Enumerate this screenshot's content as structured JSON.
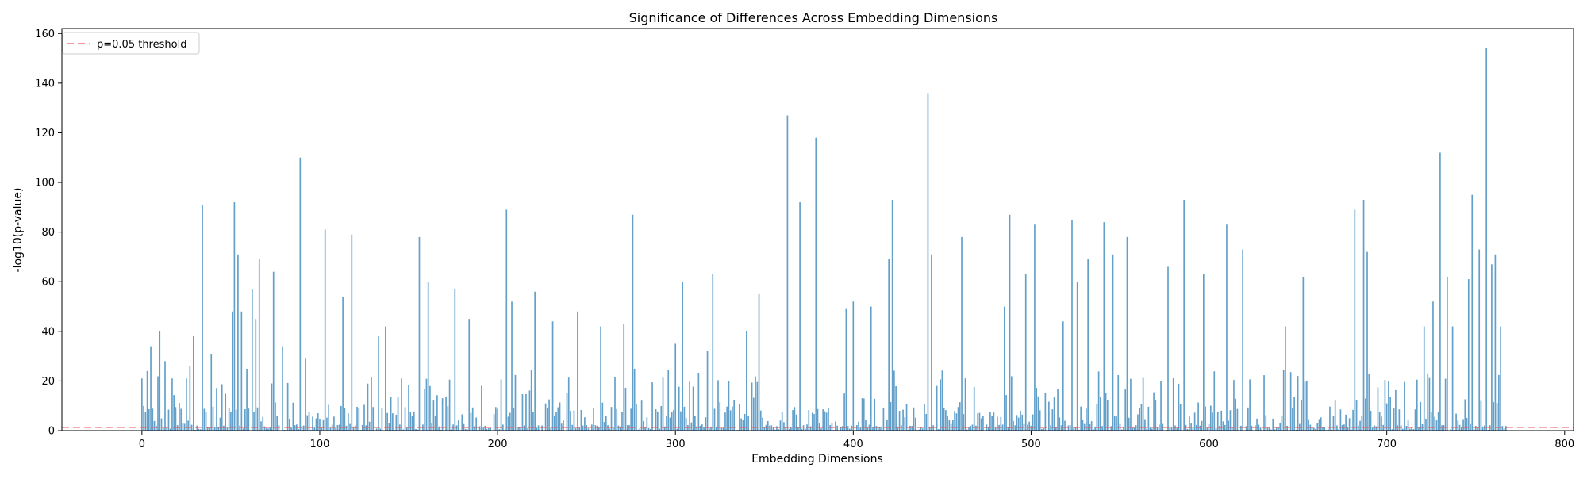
{
  "chart_data": {
    "type": "bar",
    "title": "Significance of Differences Across Embedding Dimensions",
    "xlabel": "Embedding Dimensions",
    "ylabel": "-log10(p-value)",
    "xlim": [
      -45,
      805
    ],
    "ylim": [
      0,
      162
    ],
    "xticks": [
      0,
      100,
      200,
      300,
      400,
      500,
      600,
      700,
      800
    ],
    "yticks": [
      0,
      20,
      40,
      60,
      80,
      100,
      120,
      140,
      160
    ],
    "n_dimensions": 768,
    "threshold": {
      "label": "p=0.05 threshold",
      "value": 1.3,
      "color": "#ef5350"
    },
    "legend_position": "top-left",
    "bar_color": "#1f77b4",
    "peaks": [
      [
        0,
        21
      ],
      [
        3,
        24
      ],
      [
        5,
        34
      ],
      [
        10,
        40
      ],
      [
        13,
        28
      ],
      [
        17,
        21
      ],
      [
        25,
        21
      ],
      [
        27,
        26
      ],
      [
        29,
        38
      ],
      [
        34,
        91
      ],
      [
        39,
        31
      ],
      [
        51,
        48
      ],
      [
        52,
        92
      ],
      [
        54,
        71
      ],
      [
        56,
        48
      ],
      [
        62,
        57
      ],
      [
        64,
        45
      ],
      [
        66,
        69
      ],
      [
        74,
        64
      ],
      [
        79,
        34
      ],
      [
        89,
        110
      ],
      [
        92,
        29
      ],
      [
        103,
        81
      ],
      [
        113,
        54
      ],
      [
        118,
        79
      ],
      [
        133,
        38
      ],
      [
        137,
        42
      ],
      [
        156,
        78
      ],
      [
        161,
        60
      ],
      [
        176,
        57
      ],
      [
        184,
        45
      ],
      [
        205,
        89
      ],
      [
        208,
        52
      ],
      [
        221,
        56
      ],
      [
        231,
        44
      ],
      [
        245,
        48
      ],
      [
        258,
        42
      ],
      [
        271,
        43
      ],
      [
        276,
        87
      ],
      [
        300,
        35
      ],
      [
        304,
        60
      ],
      [
        318,
        32
      ],
      [
        321,
        63
      ],
      [
        340,
        40
      ],
      [
        347,
        55
      ],
      [
        363,
        127
      ],
      [
        370,
        92
      ],
      [
        379,
        118
      ],
      [
        396,
        49
      ],
      [
        400,
        52
      ],
      [
        410,
        50
      ],
      [
        420,
        69
      ],
      [
        422,
        93
      ],
      [
        442,
        136
      ],
      [
        444,
        71
      ],
      [
        461,
        78
      ],
      [
        485,
        50
      ],
      [
        488,
        87
      ],
      [
        497,
        63
      ],
      [
        502,
        83
      ],
      [
        518,
        44
      ],
      [
        523,
        85
      ],
      [
        526,
        60
      ],
      [
        532,
        69
      ],
      [
        541,
        84
      ],
      [
        546,
        71
      ],
      [
        554,
        78
      ],
      [
        577,
        66
      ],
      [
        586,
        93
      ],
      [
        597,
        63
      ],
      [
        610,
        83
      ],
      [
        619,
        73
      ],
      [
        643,
        42
      ],
      [
        653,
        62
      ],
      [
        682,
        89
      ],
      [
        687,
        93
      ],
      [
        689,
        72
      ],
      [
        721,
        42
      ],
      [
        726,
        52
      ],
      [
        730,
        112
      ],
      [
        734,
        62
      ],
      [
        737,
        42
      ],
      [
        746,
        61
      ],
      [
        748,
        95
      ],
      [
        752,
        73
      ],
      [
        756,
        154
      ],
      [
        759,
        67
      ],
      [
        761,
        71
      ],
      [
        764,
        42
      ]
    ]
  }
}
